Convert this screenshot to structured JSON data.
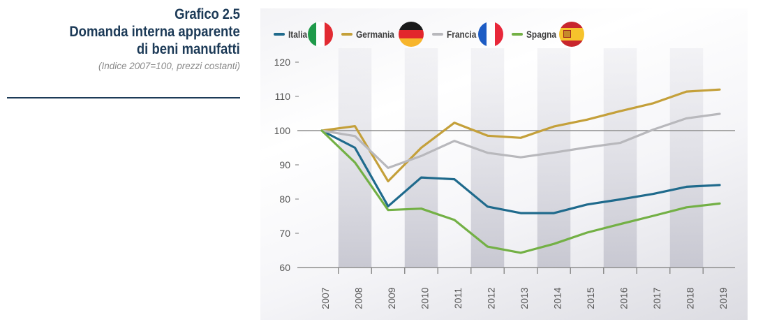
{
  "header": {
    "title_line1": "Grafico 2.5",
    "title_line2": "Domanda interna apparente",
    "title_line3": "di beni manufatti",
    "subtitle": "(Indice 2007=100, prezzi costanti)"
  },
  "legend": [
    {
      "name": "Italia",
      "color": "#1f6a8c",
      "flag_icon": "italy-flag-icon"
    },
    {
      "name": "Germania",
      "color": "#c4a03a",
      "flag_icon": "germany-flag-icon"
    },
    {
      "name": "Francia",
      "color": "#b8b8bc",
      "flag_icon": "france-flag-icon"
    },
    {
      "name": "Spagna",
      "color": "#73b045",
      "flag_icon": "spain-flag-icon"
    }
  ],
  "chart_data": {
    "type": "line",
    "title": "Domanda interna apparente di beni manufatti",
    "subtitle": "(Indice 2007=100, prezzi costanti)",
    "xlabel": "",
    "ylabel": "",
    "x": [
      "2007",
      "2008",
      "2009",
      "2010",
      "2011",
      "2012",
      "2013",
      "2014",
      "2015",
      "2016",
      "2017",
      "2018",
      "2019"
    ],
    "ylim": [
      60,
      120
    ],
    "yticks": [
      60,
      70,
      80,
      90,
      100,
      110,
      120
    ],
    "reference_line": 100,
    "grid": false,
    "shaded_bands": [
      "2008",
      "2010",
      "2012",
      "2014",
      "2016",
      "2018"
    ],
    "legend_position": "top-left",
    "series": [
      {
        "name": "Italia",
        "color": "#1f6a8c",
        "values": [
          100,
          95.0,
          77.9,
          86.3,
          85.8,
          77.8,
          75.9,
          75.9,
          78.4,
          79.9,
          81.5,
          83.6,
          84.1
        ]
      },
      {
        "name": "Germania",
        "color": "#c4a03a",
        "values": [
          100,
          101.3,
          85.2,
          95.0,
          102.3,
          98.5,
          97.9,
          101.2,
          103.2,
          105.7,
          108.0,
          111.4,
          112.0
        ]
      },
      {
        "name": "Francia",
        "color": "#b8b8bc",
        "values": [
          100,
          98.4,
          89.1,
          92.6,
          97.0,
          93.5,
          92.2,
          93.6,
          95.1,
          96.4,
          100.3,
          103.6,
          104.9
        ]
      },
      {
        "name": "Spagna",
        "color": "#73b045",
        "values": [
          100,
          90.7,
          76.8,
          77.2,
          73.9,
          66.1,
          64.3,
          66.9,
          70.2,
          72.7,
          75.1,
          77.6,
          78.7
        ]
      }
    ]
  }
}
